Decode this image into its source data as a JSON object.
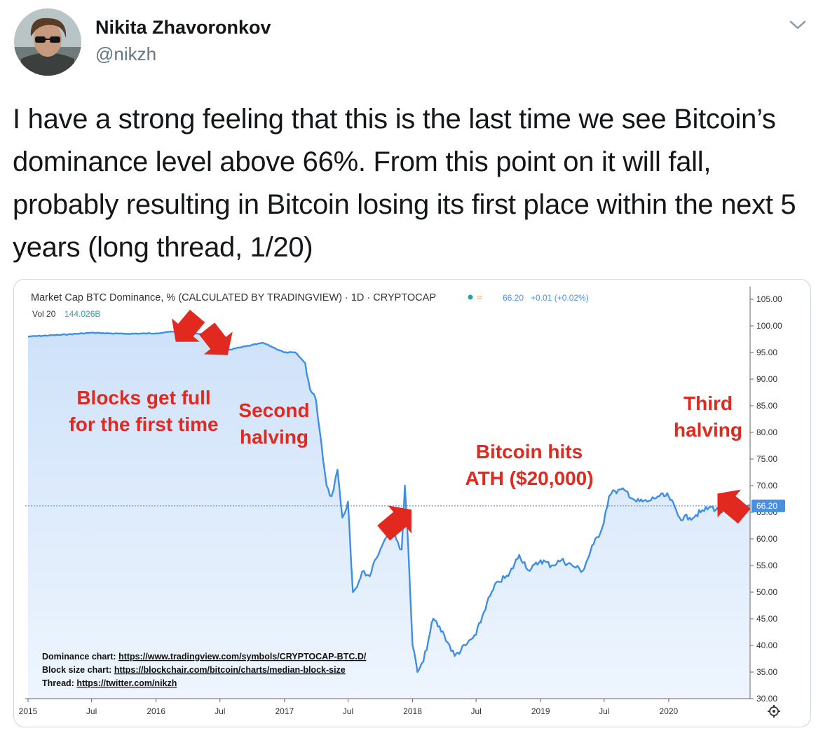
{
  "tweet": {
    "author_name": "Nikita Zhavoronkov",
    "author_handle": "@nikzh",
    "text": "I have a strong feeling that this is the last time we see Bitcoin’s dominance level above 66%. From this point on it will fall, probably resulting in Bitcoin losing its first place within the next 5 years (long thread, 1/20)"
  },
  "icons": {
    "menu": "chevron-down-icon",
    "settings": "gear-icon",
    "status": "live-dot-icon"
  },
  "colors": {
    "line": "#3f8ee6",
    "fill": "#d7e8fb",
    "annotation": "#e1291f",
    "price_tag": "#4a90e2"
  },
  "chart_header": {
    "title": "Market Cap BTC Dominance, % (CALCULATED BY TRADINGVIEW) · 1D · CRYPTOCAP",
    "current_value": "66.20",
    "change": "+0.01 (+0.02%)",
    "volume_label": "Vol 20",
    "volume_value": "144.026B",
    "price_tag": "66.20"
  },
  "chart_data": {
    "type": "line",
    "title": "Market Cap BTC Dominance, % (CALCULATED BY TRADINGVIEW)",
    "y_ticks": [
      "105.00",
      "100.00",
      "95.00",
      "90.00",
      "85.00",
      "80.00",
      "75.00",
      "70.00",
      "65.00",
      "60.00",
      "55.00",
      "50.00",
      "45.00",
      "40.00",
      "35.00",
      "30.00"
    ],
    "x_ticks": [
      "2015",
      "Jul",
      "2016",
      "Jul",
      "2017",
      "Jul",
      "2018",
      "Jul",
      "2019",
      "Jul",
      "2020"
    ],
    "ylim": [
      30,
      105
    ],
    "xlim": [
      "2015-01-01",
      "2020-08-20"
    ],
    "current_value": 66.2,
    "series": [
      {
        "x": [
          "2015-01-01",
          "2015-04-01",
          "2015-07-01",
          "2015-10-01",
          "2016-01-01",
          "2016-03-01",
          "2016-05-01",
          "2016-07-01",
          "2016-07-10",
          "2016-09-01",
          "2016-11-01",
          "2017-01-01",
          "2017-02-01",
          "2017-03-01",
          "2017-03-15",
          "2017-04-01",
          "2017-05-01",
          "2017-05-15",
          "2017-06-01",
          "2017-06-15",
          "2017-07-01",
          "2017-07-15",
          "2017-08-01",
          "2017-08-15",
          "2017-09-01",
          "2017-09-15",
          "2017-10-01",
          "2017-10-15",
          "2017-11-01",
          "2017-11-15",
          "2017-12-01",
          "2017-12-10",
          "2017-12-20",
          "2018-01-01",
          "2018-01-15",
          "2018-02-01",
          "2018-02-15",
          "2018-03-01",
          "2018-04-01",
          "2018-05-01",
          "2018-06-01",
          "2018-07-01",
          "2018-08-01",
          "2018-09-01",
          "2018-10-01",
          "2018-11-01",
          "2018-12-01",
          "2019-01-01",
          "2019-02-01",
          "2019-03-01",
          "2019-04-01",
          "2019-05-01",
          "2019-06-01",
          "2019-06-25",
          "2019-07-15",
          "2019-08-01",
          "2019-09-01",
          "2019-10-01",
          "2019-11-01",
          "2019-12-01",
          "2020-01-01",
          "2020-02-01",
          "2020-03-01",
          "2020-04-01",
          "2020-05-01",
          "2020-06-01",
          "2020-07-01",
          "2020-08-01",
          "2020-08-20"
        ],
        "y": [
          98.0,
          98.3,
          98.7,
          98.5,
          98.6,
          99.0,
          98.5,
          97.8,
          95.3,
          96.0,
          96.8,
          95.0,
          95.0,
          93.0,
          88.0,
          86.0,
          70.0,
          68.0,
          73.0,
          64.0,
          67.0,
          50.0,
          52.0,
          54.0,
          53.0,
          56.0,
          58.0,
          60.0,
          63.0,
          60.0,
          58.0,
          70.0,
          58.0,
          40.0,
          35.0,
          37.0,
          41.0,
          45.0,
          42.0,
          38.0,
          40.0,
          42.0,
          48.0,
          52.0,
          53.0,
          57.0,
          54.0,
          56.0,
          55.0,
          56.0,
          55.0,
          54.0,
          59.0,
          62.0,
          68.0,
          69.0,
          69.0,
          67.0,
          67.0,
          68.0,
          68.0,
          64.0,
          64.0,
          65.0,
          66.0,
          65.0,
          67.0,
          65.0,
          66.2
        ]
      }
    ],
    "annotations": [
      {
        "label": "Blocks get full\nfor the first time",
        "date": "2016-03-01"
      },
      {
        "label": "Second\nhalving",
        "date": "2016-07-09"
      },
      {
        "label": "Bitcoin hits\nATH ($20,000)",
        "date": "2017-12-17"
      },
      {
        "label": "Third\nhalving",
        "date": "2020-05-11"
      }
    ],
    "sources": [
      {
        "label": "Dominance chart:",
        "url": "https://www.tradingview.com/symbols/CRYPTOCAP-BTC.D/"
      },
      {
        "label": "Block size chart:",
        "url": "https://blockchair.com/bitcoin/charts/median-block-size"
      },
      {
        "label": "Thread:",
        "url": "https://twitter.com/nikzh"
      }
    ]
  }
}
